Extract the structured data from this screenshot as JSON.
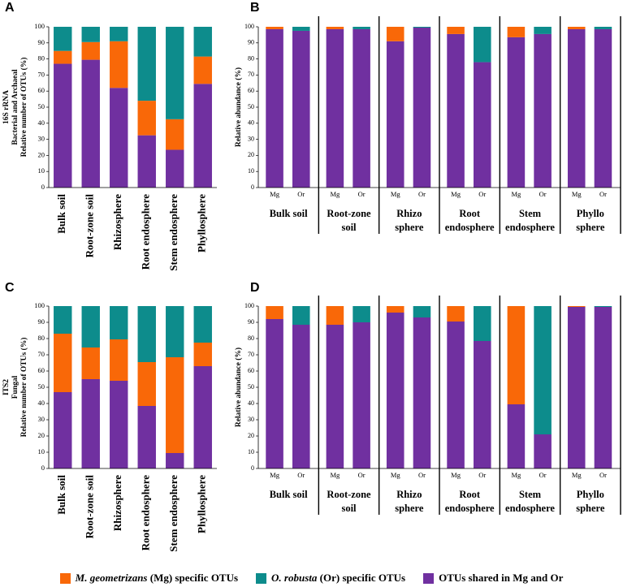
{
  "colors": {
    "mg": "#f96808",
    "or": "#0d8c8c",
    "shared": "#7030a0"
  },
  "legend": {
    "mg": {
      "species": "M. geometrizans",
      "rest": " (Mg) specific OTUs"
    },
    "or": {
      "species": "O. robusta",
      "rest": " (Or) specific OTUs"
    },
    "shared": {
      "text": "OTUs shared in Mg and Or"
    }
  },
  "chart_data": [
    {
      "panel": "A",
      "type": "bar",
      "stacked": true,
      "ylabel_lines": [
        "16S rRNA",
        "Bacterial and Archaeal",
        "Relative number of OTUs (%)"
      ],
      "ylim": [
        0,
        100
      ],
      "yticks": [
        0,
        10,
        20,
        30,
        40,
        50,
        60,
        70,
        80,
        90,
        100
      ],
      "categories": [
        "Bulk soil",
        "Root-zone soil",
        "Rhizosphere",
        "Root endosphere",
        "Stem endosphere",
        "Phyllosphere"
      ],
      "series": [
        {
          "key": "shared",
          "values": [
            77,
            79.5,
            62,
            32.5,
            23.5,
            64.5
          ]
        },
        {
          "key": "mg",
          "values": [
            8,
            11,
            29,
            21.5,
            19,
            17
          ]
        },
        {
          "key": "or",
          "values": [
            15,
            9.5,
            9,
            46,
            57.5,
            18.5
          ]
        }
      ]
    },
    {
      "panel": "B",
      "type": "bar",
      "stacked": true,
      "ylabel_lines": [
        "Relative abundance (%)"
      ],
      "ylim": [
        0,
        100
      ],
      "yticks": [
        0,
        10,
        20,
        30,
        40,
        50,
        60,
        70,
        80,
        90,
        100
      ],
      "groups": [
        {
          "label_lines": [
            "Bulk soil"
          ],
          "bars": [
            {
              "label": "Mg",
              "shared": 98.5,
              "mg": 1.5,
              "or": 0
            },
            {
              "label": "Or",
              "shared": 97.5,
              "mg": 0,
              "or": 2.5
            }
          ]
        },
        {
          "label_lines": [
            "Root-zone",
            "soil"
          ],
          "bars": [
            {
              "label": "Mg",
              "shared": 98.5,
              "mg": 1.5,
              "or": 0
            },
            {
              "label": "Or",
              "shared": 98.5,
              "mg": 0,
              "or": 1.5
            }
          ]
        },
        {
          "label_lines": [
            "Rhizo",
            "sphere"
          ],
          "bars": [
            {
              "label": "Mg",
              "shared": 91,
              "mg": 9,
              "or": 0
            },
            {
              "label": "Or",
              "shared": 99.5,
              "mg": 0,
              "or": 0.5
            }
          ]
        },
        {
          "label_lines": [
            "Root",
            "endosphere"
          ],
          "bars": [
            {
              "label": "Mg",
              "shared": 95.5,
              "mg": 4.5,
              "or": 0
            },
            {
              "label": "Or",
              "shared": 78,
              "mg": 0,
              "or": 22
            }
          ]
        },
        {
          "label_lines": [
            "Stem",
            "endosphere"
          ],
          "bars": [
            {
              "label": "Mg",
              "shared": 93.5,
              "mg": 6.5,
              "or": 0
            },
            {
              "label": "Or",
              "shared": 95.5,
              "mg": 0,
              "or": 4.5
            }
          ]
        },
        {
          "label_lines": [
            "Phyllo",
            "sphere"
          ],
          "bars": [
            {
              "label": "Mg",
              "shared": 98.5,
              "mg": 1.5,
              "or": 0
            },
            {
              "label": "Or",
              "shared": 98.5,
              "mg": 0,
              "or": 1.5
            }
          ]
        }
      ]
    },
    {
      "panel": "C",
      "type": "bar",
      "stacked": true,
      "ylabel_lines": [
        "ITS2",
        "Fungal",
        "Relative number of OTUs (%)"
      ],
      "ylim": [
        0,
        100
      ],
      "yticks": [
        0,
        10,
        20,
        30,
        40,
        50,
        60,
        70,
        80,
        90,
        100
      ],
      "categories": [
        "Bulk soil",
        "Root-zone soil",
        "Rhizosphere",
        "Root endosphere",
        "Stem endosphere",
        "Phyllosphere"
      ],
      "series": [
        {
          "key": "shared",
          "values": [
            47,
            55,
            54,
            38.5,
            9.5,
            63
          ]
        },
        {
          "key": "mg",
          "values": [
            36,
            19.5,
            25.5,
            27,
            59,
            14.5
          ]
        },
        {
          "key": "or",
          "values": [
            17,
            25.5,
            20.5,
            34.5,
            31.5,
            22.5
          ]
        }
      ]
    },
    {
      "panel": "D",
      "type": "bar",
      "stacked": true,
      "ylabel_lines": [
        "Relative abundance (%)"
      ],
      "ylim": [
        0,
        100
      ],
      "yticks": [
        0,
        10,
        20,
        30,
        40,
        50,
        60,
        70,
        80,
        90,
        100
      ],
      "groups": [
        {
          "label_lines": [
            "Bulk soil"
          ],
          "bars": [
            {
              "label": "Mg",
              "shared": 92,
              "mg": 8,
              "or": 0
            },
            {
              "label": "Or",
              "shared": 88.5,
              "mg": 0,
              "or": 11.5
            }
          ]
        },
        {
          "label_lines": [
            "Root-zone",
            "soil"
          ],
          "bars": [
            {
              "label": "Mg",
              "shared": 88.5,
              "mg": 11.5,
              "or": 0
            },
            {
              "label": "Or",
              "shared": 90,
              "mg": 0,
              "or": 10
            }
          ]
        },
        {
          "label_lines": [
            "Rhizo",
            "sphere"
          ],
          "bars": [
            {
              "label": "Mg",
              "shared": 96,
              "mg": 4,
              "or": 0
            },
            {
              "label": "Or",
              "shared": 93,
              "mg": 0,
              "or": 7
            }
          ]
        },
        {
          "label_lines": [
            "Root",
            "endosphere"
          ],
          "bars": [
            {
              "label": "Mg",
              "shared": 90.5,
              "mg": 9.5,
              "or": 0
            },
            {
              "label": "Or",
              "shared": 78.5,
              "mg": 0,
              "or": 21.5
            }
          ]
        },
        {
          "label_lines": [
            "Stem",
            "endosphere"
          ],
          "bars": [
            {
              "label": "Mg",
              "shared": 39.5,
              "mg": 60.5,
              "or": 0
            },
            {
              "label": "Or",
              "shared": 21,
              "mg": 0,
              "or": 79
            }
          ]
        },
        {
          "label_lines": [
            "Phyllo",
            "sphere"
          ],
          "bars": [
            {
              "label": "Mg",
              "shared": 99.5,
              "mg": 0.5,
              "or": 0
            },
            {
              "label": "Or",
              "shared": 99.5,
              "mg": 0,
              "or": 0.5
            }
          ]
        }
      ]
    }
  ]
}
